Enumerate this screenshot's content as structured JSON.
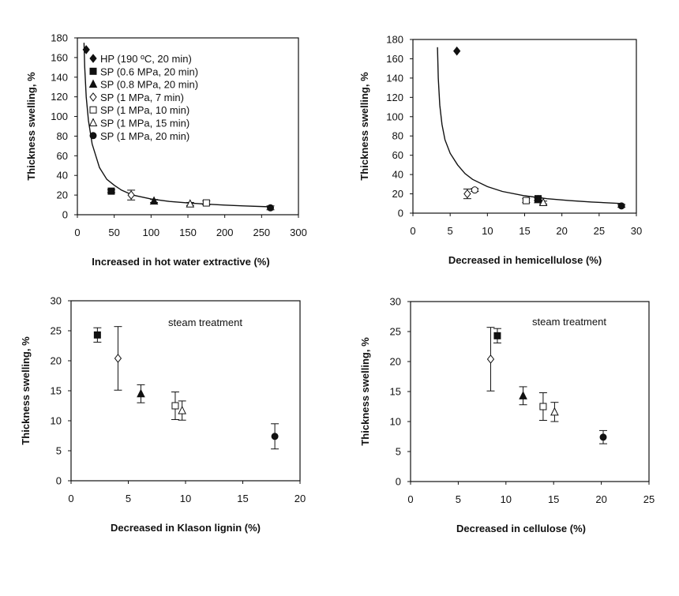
{
  "legend_entries": [
    {
      "symbol": "filled-diamond",
      "label": "HP (190 ºC, 20 min)"
    },
    {
      "symbol": "filled-square",
      "label": "SP (0.6 MPa, 20 min)"
    },
    {
      "symbol": "filled-triangle",
      "label": "SP (0.8 MPa, 20 min)"
    },
    {
      "symbol": "open-diamond",
      "label": "SP (1 MPa, 7 min)"
    },
    {
      "symbol": "open-square",
      "label": "SP (1 MPa, 10 min)"
    },
    {
      "symbol": "open-triangle",
      "label": "SP (1 MPa, 15 min)"
    },
    {
      "symbol": "filled-circle",
      "label": "SP (1 MPa, 20 min)"
    }
  ],
  "chart_data": [
    {
      "type": "scatter",
      "panel": "top-left",
      "title": "",
      "xlabel": "Increased in hot water extractive (%)",
      "ylabel": "Thickness swelling, %",
      "xlim": [
        0,
        300
      ],
      "ylim": [
        0,
        180
      ],
      "xticks": [
        0,
        50,
        100,
        150,
        200,
        250,
        300
      ],
      "yticks": [
        0,
        20,
        40,
        60,
        80,
        100,
        120,
        140,
        160,
        180
      ],
      "legend": "top-right",
      "annotation": "",
      "points": [
        {
          "series": "HP (190 ºC, 20 min)",
          "symbol": "filled-diamond",
          "x": 12,
          "y": 168,
          "err": 0
        },
        {
          "series": "SP (0.6 MPa, 20 min)",
          "symbol": "filled-square",
          "x": 46,
          "y": 24,
          "err": 1.5
        },
        {
          "series": "SP (0.8 MPa, 20 min)",
          "symbol": "filled-triangle",
          "x": 104,
          "y": 14,
          "err": 1.5
        },
        {
          "series": "SP (1 MPa, 7 min)",
          "symbol": "open-diamond",
          "x": 73,
          "y": 20,
          "err": 5
        },
        {
          "series": "SP (1 MPa, 10 min)",
          "symbol": "open-square",
          "x": 175,
          "y": 12,
          "err": 2
        },
        {
          "series": "SP (1 MPa, 15 min)",
          "symbol": "open-triangle",
          "x": 153,
          "y": 11,
          "err": 1.5
        },
        {
          "series": "SP (1 MPa, 20 min)",
          "symbol": "filled-circle",
          "x": 262,
          "y": 7,
          "err": 2
        }
      ],
      "fit_curve": {
        "x": [
          9,
          10,
          12,
          15,
          20,
          30,
          40,
          50,
          60,
          75,
          100,
          125,
          150,
          175,
          200,
          225,
          262
        ],
        "y": [
          175,
          150,
          120,
          96,
          72,
          48,
          36,
          30,
          25,
          20,
          16,
          13.5,
          12,
          10.8,
          9.8,
          9,
          8
        ]
      }
    },
    {
      "type": "scatter",
      "panel": "top-right",
      "title": "",
      "xlabel": "Decreased in hemicellulose (%)",
      "ylabel": "Thickness swelling, %",
      "xlim": [
        0,
        30
      ],
      "ylim": [
        0,
        180
      ],
      "xticks": [
        0,
        5,
        10,
        15,
        20,
        25,
        30
      ],
      "yticks": [
        0,
        20,
        40,
        60,
        80,
        100,
        120,
        140,
        160,
        180
      ],
      "legend": "none",
      "annotation": "",
      "points": [
        {
          "series": "HP (190 ºC, 20 min)",
          "symbol": "filled-diamond",
          "x": 5.9,
          "y": 168,
          "err": 0
        },
        {
          "series": "SP (0.6 MPa, 20 min)",
          "symbol": "filled-square",
          "x": 16.8,
          "y": 15,
          "err": 1.5
        },
        {
          "series": "SP (0.8 MPa, 20 min)",
          "symbol": "filled-triangle",
          "x": 16.8,
          "y": 14,
          "err": 1.5
        },
        {
          "series": "SP (1 MPa, 7 min)",
          "symbol": "open-diamond",
          "x": 7.3,
          "y": 20,
          "err": 5
        },
        {
          "series": "SP (1 MPa, 10 min)",
          "symbol": "open-square",
          "x": 15.2,
          "y": 13,
          "err": 2
        },
        {
          "series": "SP (1 MPa, 15 min)",
          "symbol": "open-triangle",
          "x": 17.5,
          "y": 11,
          "err": 1.5
        },
        {
          "series": "SP (1 MPa, 20 min)",
          "symbol": "filled-circle",
          "x": 28,
          "y": 7.5,
          "err": 1.5
        },
        {
          "series": "SP (1 MPa, 7 min)",
          "symbol": "open-circle",
          "x": 8.3,
          "y": 24,
          "err": 1.5
        }
      ],
      "fit_curve": {
        "x": [
          3.3,
          3.4,
          3.6,
          3.9,
          4.3,
          5,
          6,
          7,
          8,
          10,
          12,
          15,
          18,
          21,
          24,
          28
        ],
        "y": [
          172,
          140,
          112,
          92,
          76,
          62,
          50,
          41,
          35,
          27.5,
          22.5,
          18,
          15,
          13,
          11.5,
          10
        ]
      }
    },
    {
      "type": "scatter",
      "panel": "bottom-left",
      "title": "",
      "xlabel": "Decreased in Klason lignin (%)",
      "ylabel": "Thickness swelling, %",
      "xlim": [
        0,
        20
      ],
      "ylim": [
        0,
        30
      ],
      "xticks": [
        0,
        5,
        10,
        15,
        20
      ],
      "yticks": [
        0,
        5,
        10,
        15,
        20,
        25,
        30
      ],
      "legend": "none",
      "annotation": "steam treatment",
      "points": [
        {
          "series": "SP (0.6 MPa, 20 min)",
          "symbol": "filled-square",
          "x": 2.3,
          "y": 24.3,
          "err": 1.2
        },
        {
          "series": "SP (1 MPa, 7 min)",
          "symbol": "open-diamond",
          "x": 4.1,
          "y": 20.4,
          "err": 5.3
        },
        {
          "series": "SP (0.8 MPa, 20 min)",
          "symbol": "filled-triangle",
          "x": 6.1,
          "y": 14.5,
          "err": 1.5
        },
        {
          "series": "SP (1 MPa, 10 min)",
          "symbol": "open-square",
          "x": 9.1,
          "y": 12.5,
          "err": 2.3
        },
        {
          "series": "SP (1 MPa, 15 min)",
          "symbol": "open-triangle",
          "x": 9.7,
          "y": 11.7,
          "err": 1.6
        },
        {
          "series": "SP (1 MPa, 20 min)",
          "symbol": "filled-circle",
          "x": 17.8,
          "y": 7.4,
          "err": 2.1
        }
      ]
    },
    {
      "type": "scatter",
      "panel": "bottom-right",
      "title": "",
      "xlabel": "Decreased in cellulose (%)",
      "ylabel": "Thickness swelling, %",
      "xlim": [
        0,
        25
      ],
      "ylim": [
        0,
        30
      ],
      "xticks": [
        0,
        5,
        10,
        15,
        20,
        25
      ],
      "yticks": [
        0,
        5,
        10,
        15,
        20,
        25,
        30
      ],
      "legend": "none",
      "annotation": "steam treatment",
      "points": [
        {
          "series": "SP (1 MPa, 7 min)",
          "symbol": "open-diamond",
          "x": 8.4,
          "y": 20.4,
          "err": 5.3
        },
        {
          "series": "SP (0.6 MPa, 20 min)",
          "symbol": "filled-square",
          "x": 9.1,
          "y": 24.3,
          "err": 1.2
        },
        {
          "series": "SP (0.8 MPa, 20 min)",
          "symbol": "filled-triangle",
          "x": 11.8,
          "y": 14.3,
          "err": 1.5
        },
        {
          "series": "SP (1 MPa, 10 min)",
          "symbol": "open-square",
          "x": 13.9,
          "y": 12.5,
          "err": 2.3
        },
        {
          "series": "SP (1 MPa, 15 min)",
          "symbol": "open-triangle",
          "x": 15.1,
          "y": 11.6,
          "err": 1.6
        },
        {
          "series": "SP (1 MPa, 20 min)",
          "symbol": "filled-circle",
          "x": 20.2,
          "y": 7.4,
          "err": 1.1
        }
      ]
    }
  ]
}
